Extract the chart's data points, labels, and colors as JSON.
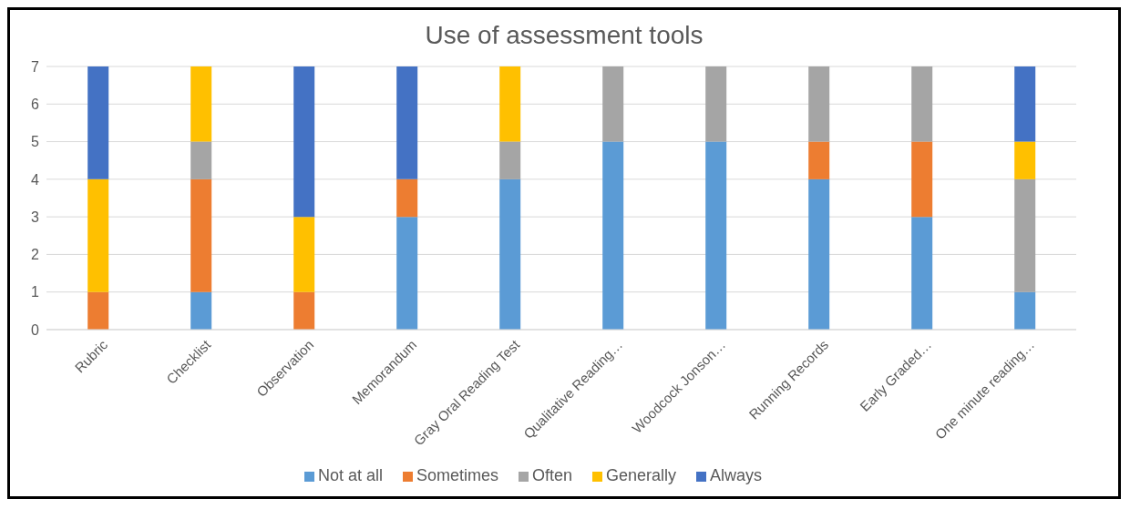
{
  "chart_data": {
    "type": "bar",
    "title": "Use of assessment tools",
    "stacked": true,
    "grid": "y",
    "legend": "bottom",
    "categories": [
      "Rubric",
      "Checklist",
      "Observation",
      "Memorandum",
      "Gray Oral Reading Test",
      "Qualitative Reading…",
      "Woodcock Jonson…",
      "Running Records",
      "Early Graded…",
      "One minute reading…"
    ],
    "series": [
      {
        "name": "Not at all",
        "color": "#5b9bd5",
        "values": [
          0,
          1,
          0,
          3,
          4,
          5,
          5,
          4,
          3,
          1
        ]
      },
      {
        "name": "Sometimes",
        "color": "#ed7d31",
        "values": [
          1,
          3,
          1,
          1,
          0,
          0,
          0,
          1,
          2,
          0
        ]
      },
      {
        "name": "Often",
        "color": "#a5a5a5",
        "values": [
          0,
          1,
          0,
          0,
          1,
          2,
          2,
          2,
          2,
          3
        ]
      },
      {
        "name": "Generally",
        "color": "#ffc000",
        "values": [
          3,
          2,
          2,
          0,
          2,
          0,
          0,
          0,
          0,
          1
        ]
      },
      {
        "name": "Always",
        "color": "#4472c4",
        "values": [
          3,
          0,
          4,
          3,
          0,
          0,
          0,
          0,
          0,
          2
        ]
      }
    ],
    "ylim": [
      0,
      7
    ],
    "yticks": [
      0,
      1,
      2,
      3,
      4,
      5,
      6,
      7
    ]
  }
}
